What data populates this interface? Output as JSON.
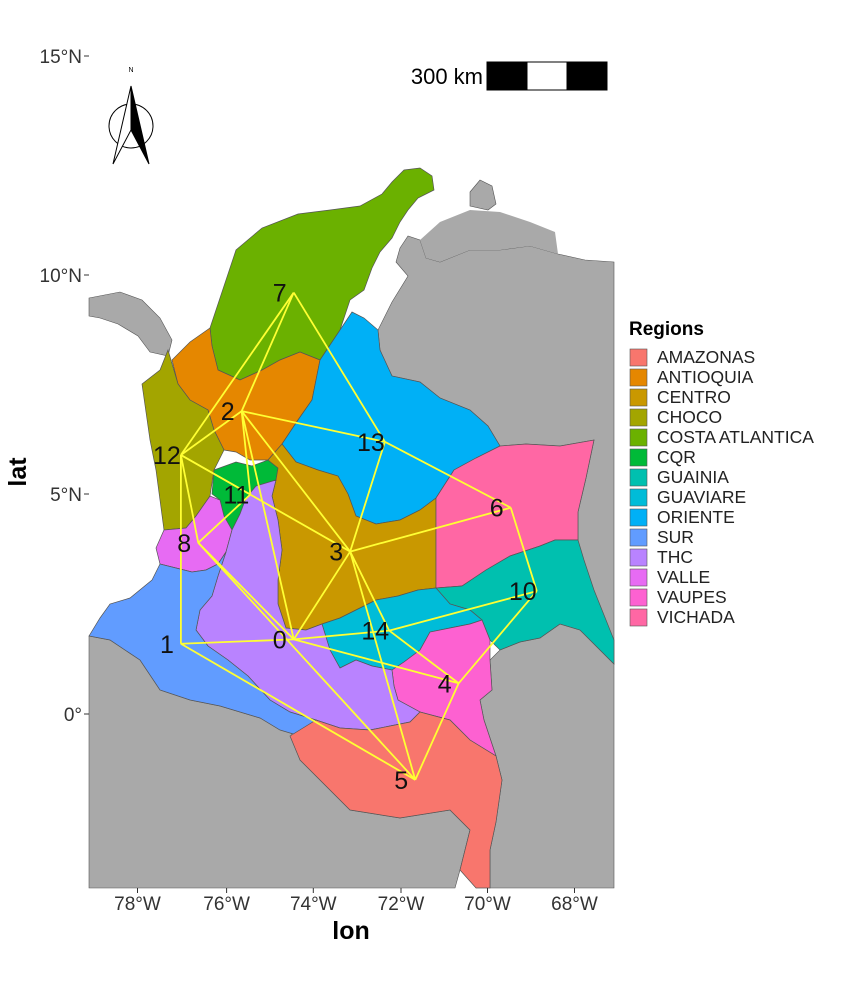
{
  "map": {
    "xlabel": "lon",
    "ylabel": "lat",
    "x_ticks": [
      "78°W",
      "76°W",
      "74°W",
      "72°W",
      "70°W",
      "68°W"
    ],
    "y_ticks": [
      "0°",
      "5°N",
      "10°N",
      "15°N"
    ],
    "scale_bar_label": "300 km",
    "north_arrow_label": "N",
    "background_land_color": "#A9A9A9",
    "route_color": "#FFFF33",
    "legend": {
      "title": "Regions",
      "items": [
        {
          "label": "AMAZONAS",
          "color": "#F8766D"
        },
        {
          "label": "ANTIOQUIA",
          "color": "#E58700"
        },
        {
          "label": "CENTRO",
          "color": "#C99800"
        },
        {
          "label": "CHOCO",
          "color": "#A3A500"
        },
        {
          "label": "COSTA ATLANTICA",
          "color": "#6BB100"
        },
        {
          "label": "CQR",
          "color": "#00BA38"
        },
        {
          "label": "GUAINIA",
          "color": "#00C0AF"
        },
        {
          "label": "GUAVIARE",
          "color": "#00BCD8"
        },
        {
          "label": "ORIENTE",
          "color": "#00B0F6"
        },
        {
          "label": "SUR",
          "color": "#619CFF"
        },
        {
          "label": "THC",
          "color": "#B983FF"
        },
        {
          "label": "VALLE",
          "color": "#E76BF3"
        },
        {
          "label": "VAUPES",
          "color": "#FD61D1"
        },
        {
          "label": "VICHADA",
          "color": "#FF67A4"
        }
      ]
    },
    "nodes": [
      {
        "id": "0",
        "lon": -74.4,
        "lat": 1.7
      },
      {
        "id": "1",
        "lon": -77.0,
        "lat": 1.6
      },
      {
        "id": "2",
        "lon": -75.6,
        "lat": 6.9
      },
      {
        "id": "3",
        "lon": -73.1,
        "lat": 3.7
      },
      {
        "id": "4",
        "lon": -70.6,
        "lat": 0.7
      },
      {
        "id": "5",
        "lon": -71.6,
        "lat": -1.5
      },
      {
        "id": "6",
        "lon": -69.4,
        "lat": 4.7
      },
      {
        "id": "7",
        "lon": -74.4,
        "lat": 9.6
      },
      {
        "id": "8",
        "lon": -76.6,
        "lat": 3.9
      },
      {
        "id": "10",
        "lon": -68.8,
        "lat": 2.8
      },
      {
        "id": "11",
        "lon": -75.4,
        "lat": 5.0
      },
      {
        "id": "12",
        "lon": -77.0,
        "lat": 5.9
      },
      {
        "id": "13",
        "lon": -72.3,
        "lat": 6.2
      },
      {
        "id": "14",
        "lon": -72.2,
        "lat": 1.9
      }
    ],
    "routes": [
      [
        "7",
        "2"
      ],
      [
        "7",
        "12"
      ],
      [
        "7",
        "13"
      ],
      [
        "2",
        "12"
      ],
      [
        "2",
        "13"
      ],
      [
        "2",
        "11"
      ],
      [
        "2",
        "3"
      ],
      [
        "2",
        "0"
      ],
      [
        "12",
        "11"
      ],
      [
        "12",
        "8"
      ],
      [
        "12",
        "1"
      ],
      [
        "12",
        "3"
      ],
      [
        "13",
        "3"
      ],
      [
        "13",
        "6"
      ],
      [
        "3",
        "0"
      ],
      [
        "3",
        "6"
      ],
      [
        "3",
        "14"
      ],
      [
        "3",
        "5"
      ],
      [
        "8",
        "0"
      ],
      [
        "8",
        "11"
      ],
      [
        "8",
        "5"
      ],
      [
        "1",
        "0"
      ],
      [
        "1",
        "5"
      ],
      [
        "0",
        "14"
      ],
      [
        "0",
        "4"
      ],
      [
        "14",
        "10"
      ],
      [
        "14",
        "4"
      ],
      [
        "6",
        "10"
      ],
      [
        "10",
        "4"
      ],
      [
        "4",
        "5"
      ]
    ]
  }
}
